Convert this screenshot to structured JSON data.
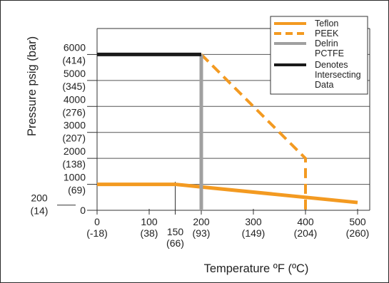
{
  "chart_data": {
    "type": "line",
    "xlabel": "Temperature ºF (ºC)",
    "ylabel": "Pressure psig (bar)",
    "xlim": [
      0,
      520
    ],
    "ylim": [
      0,
      7000
    ],
    "grid": "horizontal",
    "legend_position": "top-right",
    "x_ticks": [
      {
        "value": 0,
        "label": "0",
        "sub": "(-18)"
      },
      {
        "value": 100,
        "label": "100",
        "sub": "(38)"
      },
      {
        "value": 150,
        "label": "150",
        "sub": "(66)",
        "lowered": true
      },
      {
        "value": 200,
        "label": "200",
        "sub": "(93)"
      },
      {
        "value": 300,
        "label": "300",
        "sub": "(149)"
      },
      {
        "value": 400,
        "label": "400",
        "sub": "(204)"
      },
      {
        "value": 500,
        "label": "500",
        "sub": "(260)"
      }
    ],
    "y_ticks": [
      {
        "value": 0,
        "label": "0",
        "sub": ""
      },
      {
        "value": 1000,
        "label": "1000",
        "sub": "(69)"
      },
      {
        "value": 2000,
        "label": "2000",
        "sub": "(138)"
      },
      {
        "value": 3000,
        "label": "3000",
        "sub": "(207)"
      },
      {
        "value": 4000,
        "label": "4000",
        "sub": "(276)"
      },
      {
        "value": 5000,
        "label": "5000",
        "sub": "(345)"
      },
      {
        "value": 6000,
        "label": "6000",
        "sub": "(414)"
      }
    ],
    "extra_y_label": {
      "value": 200,
      "label": "200",
      "sub": "(14)"
    },
    "series": [
      {
        "name": "Teflon",
        "style": "solid",
        "color": "#f39a21",
        "x": [
          0,
          150,
          200,
          500
        ],
        "y": [
          1000,
          1000,
          900,
          300
        ]
      },
      {
        "name": "PEEK",
        "style": "dashed",
        "color": "#f39a21",
        "x": [
          200,
          400,
          400
        ],
        "y": [
          6000,
          2000,
          0
        ]
      },
      {
        "name": "Delrin PCTFE",
        "style": "solid",
        "color": "#a0a0a0",
        "x": [
          200,
          200
        ],
        "y": [
          0,
          6000
        ]
      },
      {
        "name": "Denotes Intersecting Data",
        "style": "solid",
        "color": "#1a1a1a",
        "x": [
          0,
          200
        ],
        "y": [
          6000,
          6000
        ]
      }
    ],
    "legend": [
      {
        "lines": [
          "Teflon"
        ],
        "color": "#f39a21",
        "style": "solid"
      },
      {
        "lines": [
          "PEEK"
        ],
        "color": "#f39a21",
        "style": "dashed"
      },
      {
        "lines": [
          "Delrin",
          "PCTFE"
        ],
        "color": "#a0a0a0",
        "style": "solid"
      },
      {
        "lines": [
          "Denotes",
          "Intersecting",
          "Data"
        ],
        "color": "#1a1a1a",
        "style": "solid"
      }
    ]
  }
}
